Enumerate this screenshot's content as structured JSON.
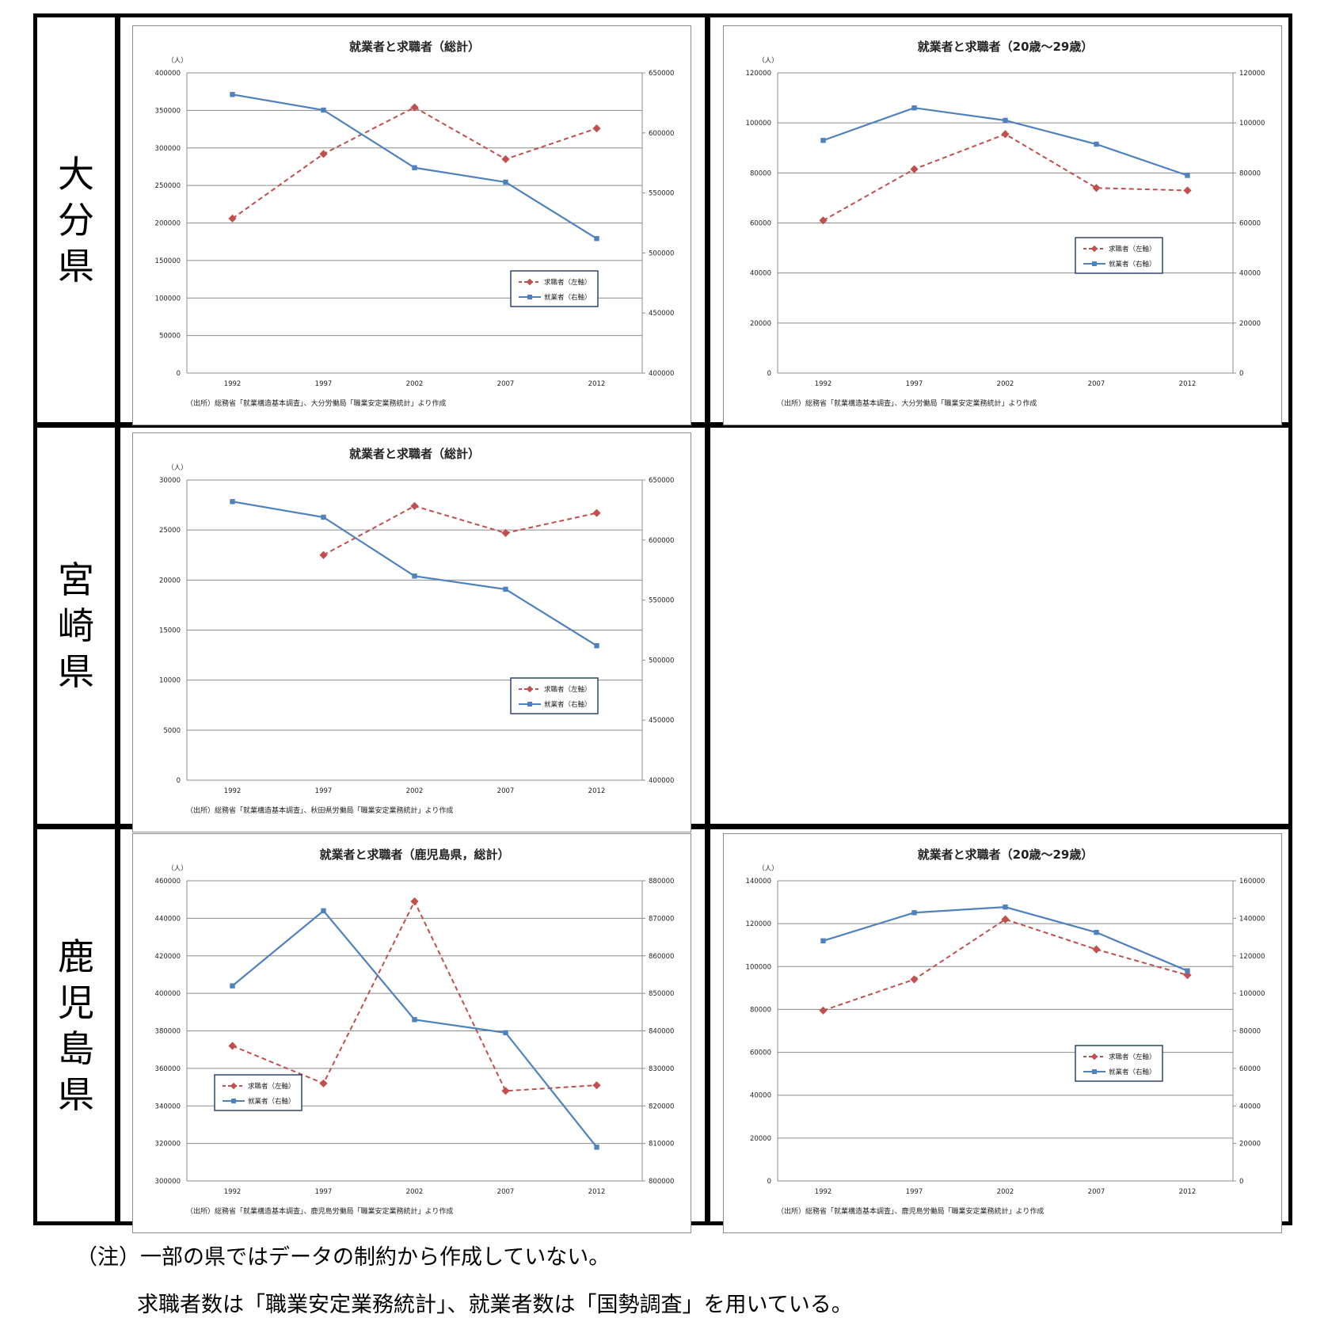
{
  "prefectures": [
    {
      "chars": [
        "大",
        "分",
        "県"
      ]
    },
    {
      "chars": [
        "宮",
        "崎",
        "県"
      ]
    },
    {
      "chars": [
        "鹿",
        "児",
        "島",
        "県"
      ]
    }
  ],
  "legend_labels": {
    "seekers": "求職者（左軸）",
    "employed": "就業者（右軸）"
  },
  "unit_label": "（人）",
  "colors": {
    "seekers": "#C0504D",
    "employed": "#4F81BD",
    "border": "#1F3864"
  },
  "notes": {
    "line1": "（注）一部の県ではデータの制約から作成していない。",
    "line2": "求職者数は「職業安定業務統計」、就業者数は「国勢調査」を用いている。"
  },
  "chart_data": [
    {
      "id": "oita-total",
      "type": "line",
      "title": "就業者と求職者（総計）",
      "source": "（出所）総務省「就業構造基本調査」、大分労働局「職業安定業務統計」より作成",
      "categories": [
        "1992",
        "1997",
        "2002",
        "2007",
        "2012"
      ],
      "y_left": {
        "min": 0,
        "max": 400000,
        "ticks": [
          "0",
          "50000",
          "100000",
          "150000",
          "200000",
          "250000",
          "300000",
          "350000",
          "400000"
        ]
      },
      "y_right": {
        "min": 400000,
        "max": 650000,
        "ticks": [
          "400000",
          "450000",
          "500000",
          "550000",
          "600000",
          "650000"
        ]
      },
      "series": [
        {
          "name": "求職者（左軸）",
          "axis": "left",
          "values": [
            206000,
            292000,
            354000,
            285000,
            326000
          ]
        },
        {
          "name": "就業者（右軸）",
          "axis": "right",
          "values": [
            632000,
            619000,
            571000,
            559000,
            512000
          ]
        }
      ],
      "legend_position": "lower-right"
    },
    {
      "id": "oita-20s",
      "type": "line",
      "title": "就業者と求職者（20歳～29歳）",
      "source": "（出所）総務省「就業構造基本調査」、大分労働局「職業安定業務統計」より作成",
      "categories": [
        "1992",
        "1997",
        "2002",
        "2007",
        "2012"
      ],
      "y_left": {
        "min": 0,
        "max": 120000,
        "ticks": [
          "0",
          "20000",
          "40000",
          "60000",
          "80000",
          "100000",
          "120000"
        ]
      },
      "y_right": {
        "min": 0,
        "max": 120000,
        "ticks": [
          "0",
          "20000",
          "40000",
          "60000",
          "80000",
          "100000",
          "120000"
        ]
      },
      "series": [
        {
          "name": "求職者（左軸）",
          "axis": "left",
          "values": [
            61000,
            81500,
            95500,
            74000,
            73000
          ]
        },
        {
          "name": "就業者（右軸）",
          "axis": "right",
          "values": [
            93000,
            106000,
            101000,
            91500,
            79000
          ]
        }
      ],
      "legend_position": "middle-right"
    },
    {
      "id": "miyazaki-total",
      "type": "line",
      "title": "就業者と求職者（総計）",
      "source": "（出所）総務省「就業構造基本調査」、秋田県労働局「職業安定業務統計」より作成",
      "categories": [
        "1992",
        "1997",
        "2002",
        "2007",
        "2012"
      ],
      "y_left": {
        "min": 0,
        "max": 30000,
        "ticks": [
          "0",
          "5000",
          "10000",
          "15000",
          "20000",
          "25000",
          "30000"
        ]
      },
      "y_right": {
        "min": 400000,
        "max": 650000,
        "ticks": [
          "400000",
          "450000",
          "500000",
          "550000",
          "600000",
          "650000"
        ]
      },
      "series": [
        {
          "name": "求職者（左軸）",
          "axis": "left",
          "values": [
            null,
            22500,
            27400,
            24700,
            26700
          ]
        },
        {
          "name": "就業者（右軸）",
          "axis": "right",
          "values": [
            632000,
            619000,
            570000,
            559000,
            512000
          ]
        }
      ],
      "legend_position": "lower-right"
    },
    {
      "id": "kagoshima-total",
      "type": "line",
      "title": "就業者と求職者（鹿児島県，総計）",
      "source": "（出所）総務省「就業構造基本調査」、鹿児島労働局「職業安定業務統計」より作成",
      "categories": [
        "1992",
        "1997",
        "2002",
        "2007",
        "2012"
      ],
      "y_left": {
        "min": 300000,
        "max": 460000,
        "ticks": [
          "300000",
          "320000",
          "340000",
          "360000",
          "380000",
          "400000",
          "420000",
          "440000",
          "460000"
        ]
      },
      "y_right": {
        "min": 800000,
        "max": 880000,
        "ticks": [
          "800000",
          "810000",
          "820000",
          "830000",
          "840000",
          "850000",
          "860000",
          "870000",
          "880000"
        ]
      },
      "series": [
        {
          "name": "求職者（左軸）",
          "axis": "left",
          "values": [
            372000,
            352000,
            449000,
            348000,
            351000
          ]
        },
        {
          "name": "就業者（右軸）",
          "axis": "right",
          "values": [
            852000,
            872000,
            843000,
            839500,
            809000
          ]
        }
      ],
      "legend_position": "lower-left"
    },
    {
      "id": "kagoshima-20s",
      "type": "line",
      "title": "就業者と求職者（20歳～29歳）",
      "source": "（出所）総務省「就業構造基本調査」、鹿児島労働局「職業安定業務統計」より作成",
      "categories": [
        "1992",
        "1997",
        "2002",
        "2007",
        "2012"
      ],
      "y_left": {
        "min": 0,
        "max": 140000,
        "ticks": [
          "0",
          "20000",
          "40000",
          "60000",
          "80000",
          "100000",
          "120000",
          "140000"
        ]
      },
      "y_right": {
        "min": 0,
        "max": 160000,
        "ticks": [
          "0",
          "20000",
          "40000",
          "60000",
          "80000",
          "100000",
          "120000",
          "140000",
          "160000"
        ]
      },
      "series": [
        {
          "name": "求職者（左軸）",
          "axis": "left",
          "values": [
            79500,
            94000,
            122000,
            108000,
            96000
          ]
        },
        {
          "name": "就業者（右軸）",
          "axis": "right",
          "values": [
            128000,
            143000,
            146000,
            132500,
            112000
          ]
        }
      ],
      "legend_position": "middle-right"
    }
  ]
}
